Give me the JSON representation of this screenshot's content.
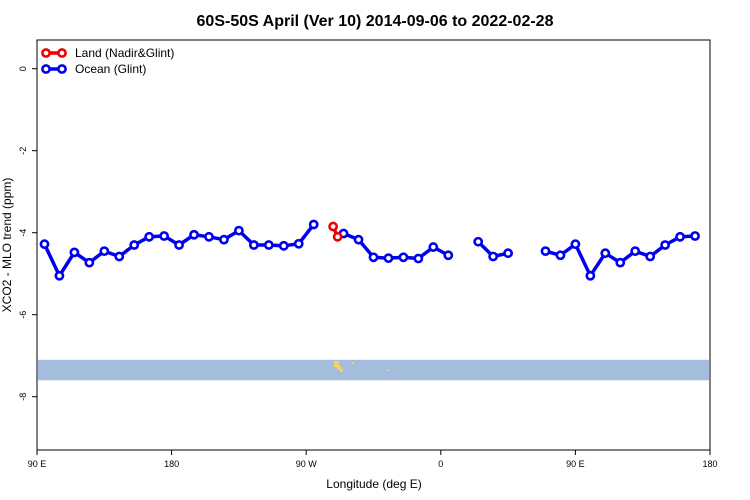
{
  "chart_data": {
    "type": "line",
    "title": "60S-50S April (Ver 10)   2014-09-06 to 2022-02-28",
    "xlabel": "Longitude (deg E)",
    "ylabel": "XCO2 - MLO trend (ppm)",
    "xlim": [
      90,
      540
    ],
    "ylim": [
      -9.3,
      0.7
    ],
    "x_ticks": [
      {
        "value": 90,
        "label": "90 E"
      },
      {
        "value": 180,
        "label": "180"
      },
      {
        "value": 270,
        "label": "90 W"
      },
      {
        "value": 360,
        "label": "0"
      },
      {
        "value": 450,
        "label": "90 E"
      },
      {
        "value": 540,
        "label": "180"
      }
    ],
    "y_ticks": [
      0,
      -2,
      -4,
      -6,
      -8
    ],
    "grid": false,
    "legend_position": "top-left",
    "series": [
      {
        "name": "Land (Nadir&Glint)",
        "color": "#ee0000",
        "points": [
          [
            288,
            -3.85
          ],
          [
            291,
            -4.1
          ]
        ]
      },
      {
        "name": "Ocean (Glint)",
        "color": "#0000ee",
        "segments": [
          [
            [
              95,
              -4.28
            ],
            [
              105,
              -5.05
            ],
            [
              115,
              -4.48
            ],
            [
              125,
              -4.73
            ],
            [
              135,
              -4.45
            ],
            [
              145,
              -4.58
            ],
            [
              155,
              -4.3
            ],
            [
              165,
              -4.1
            ],
            [
              175,
              -4.08
            ],
            [
              185,
              -4.3
            ],
            [
              195,
              -4.05
            ],
            [
              205,
              -4.1
            ],
            [
              215,
              -4.17
            ],
            [
              225,
              -3.95
            ],
            [
              235,
              -4.3
            ],
            [
              245,
              -4.3
            ],
            [
              255,
              -4.32
            ],
            [
              265,
              -4.27
            ],
            [
              275,
              -3.8
            ]
          ],
          [
            [
              295,
              -4.02
            ],
            [
              305,
              -4.17
            ],
            [
              315,
              -4.6
            ],
            [
              325,
              -4.62
            ],
            [
              335,
              -4.6
            ],
            [
              345,
              -4.63
            ],
            [
              355,
              -4.35
            ],
            [
              365,
              -4.55
            ]
          ],
          [
            [
              385,
              -4.22
            ],
            [
              395,
              -4.58
            ],
            [
              405,
              -4.5
            ]
          ],
          [
            [
              430,
              -4.45
            ],
            [
              440,
              -4.55
            ],
            [
              450,
              -4.28
            ],
            [
              460,
              -5.05
            ],
            [
              470,
              -4.5
            ],
            [
              480,
              -4.73
            ],
            [
              490,
              -4.45
            ],
            [
              500,
              -4.58
            ],
            [
              510,
              -4.3
            ],
            [
              520,
              -4.1
            ],
            [
              530,
              -4.08
            ]
          ]
        ]
      }
    ],
    "coverage_band": {
      "ymin": -7.6,
      "ymax": -7.1,
      "color": "#a5bddc",
      "land_color": "#f5d06a"
    }
  }
}
